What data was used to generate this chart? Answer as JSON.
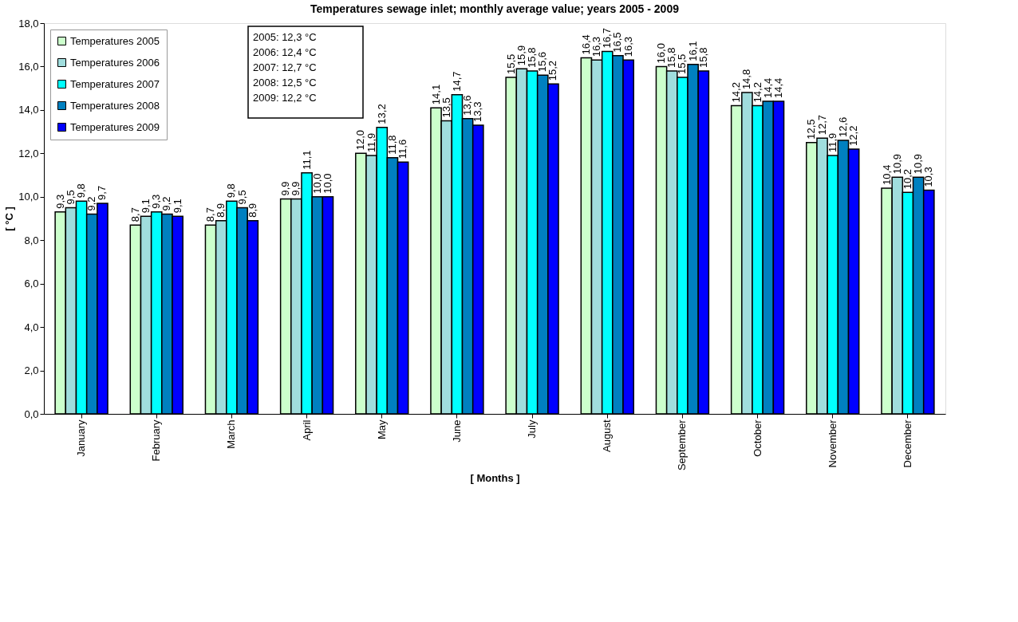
{
  "chart_data": {
    "type": "bar",
    "title": "Temperatures sewage inlet; monthly average value; years 2005 - 2009",
    "xlabel": "[ Months ]",
    "ylabel": "[ °C ]",
    "categories": [
      "January",
      "February",
      "March",
      "April",
      "May",
      "June",
      "July",
      "August",
      "September",
      "October",
      "November",
      "December"
    ],
    "series": [
      {
        "name": "Temperatures 2005",
        "color": "#ccffcc",
        "values": [
          9.3,
          8.7,
          8.7,
          9.9,
          12.0,
          14.1,
          15.5,
          16.4,
          16.0,
          14.2,
          12.5,
          10.4
        ],
        "value_labels": [
          "9,3",
          "8,7",
          "8,7",
          "9,9",
          "12,0",
          "14,1",
          "15,5",
          "16,4",
          "16,0",
          "14,2",
          "12,5",
          "10,4"
        ]
      },
      {
        "name": "Temperatures 2006",
        "color": "#a0dddd",
        "values": [
          9.5,
          9.1,
          8.9,
          9.9,
          11.9,
          13.5,
          15.9,
          16.3,
          15.8,
          14.8,
          12.7,
          10.9
        ],
        "value_labels": [
          "9,5",
          "9,1",
          "8,9",
          "9,9",
          "11,9",
          "13,5",
          "15,9",
          "16,3",
          "15,8",
          "14,8",
          "12,7",
          "10,9"
        ]
      },
      {
        "name": "Temperatures 2007",
        "color": "#00ffff",
        "values": [
          9.8,
          9.3,
          9.8,
          11.1,
          13.2,
          14.7,
          15.8,
          16.7,
          15.5,
          14.2,
          11.9,
          10.2
        ],
        "value_labels": [
          "9,8",
          "9,3",
          "9,8",
          "11,1",
          "13,2",
          "14,7",
          "15,8",
          "16,7",
          "15,5",
          "14,2",
          "11,9",
          "10,2"
        ]
      },
      {
        "name": "Temperatures 2008",
        "color": "#0080c0",
        "values": [
          9.2,
          9.2,
          9.5,
          10.0,
          11.8,
          13.6,
          15.6,
          16.5,
          16.1,
          14.4,
          12.6,
          10.9
        ],
        "value_labels": [
          "9,2",
          "9,2",
          "9,5",
          "10,0",
          "11,8",
          "13,6",
          "15,6",
          "16,5",
          "16,1",
          "14,4",
          "12,6",
          "10,9"
        ]
      },
      {
        "name": "Temperatures 2009",
        "color": "#0000ff",
        "values": [
          9.7,
          9.1,
          8.9,
          10.0,
          11.6,
          13.3,
          15.2,
          16.3,
          15.8,
          14.4,
          12.2,
          10.3
        ],
        "value_labels": [
          "9,7",
          "9,1",
          "8,9",
          "10,0",
          "11,6",
          "13,3",
          "15,2",
          "16,3",
          "15,8",
          "14,4",
          "12,2",
          "10,3"
        ]
      }
    ],
    "ylim": [
      0,
      18
    ],
    "yticks": [
      {
        "value": 0,
        "label": "0,0"
      },
      {
        "value": 2,
        "label": "2,0"
      },
      {
        "value": 4,
        "label": "4,0"
      },
      {
        "value": 6,
        "label": "6,0"
      },
      {
        "value": 8,
        "label": "8,0"
      },
      {
        "value": 10,
        "label": "10,0"
      },
      {
        "value": 12,
        "label": "12,0"
      },
      {
        "value": 14,
        "label": "14,0"
      },
      {
        "value": 16,
        "label": "16,0"
      },
      {
        "value": 18,
        "label": "18,0"
      }
    ],
    "annotations": [
      "2005: 12,3 °C",
      "2006: 12,4 °C",
      "2007: 12,7 °C",
      "2008: 12,5 °C",
      "2009: 12,2 °C"
    ],
    "legend": "top left",
    "grid": false
  }
}
